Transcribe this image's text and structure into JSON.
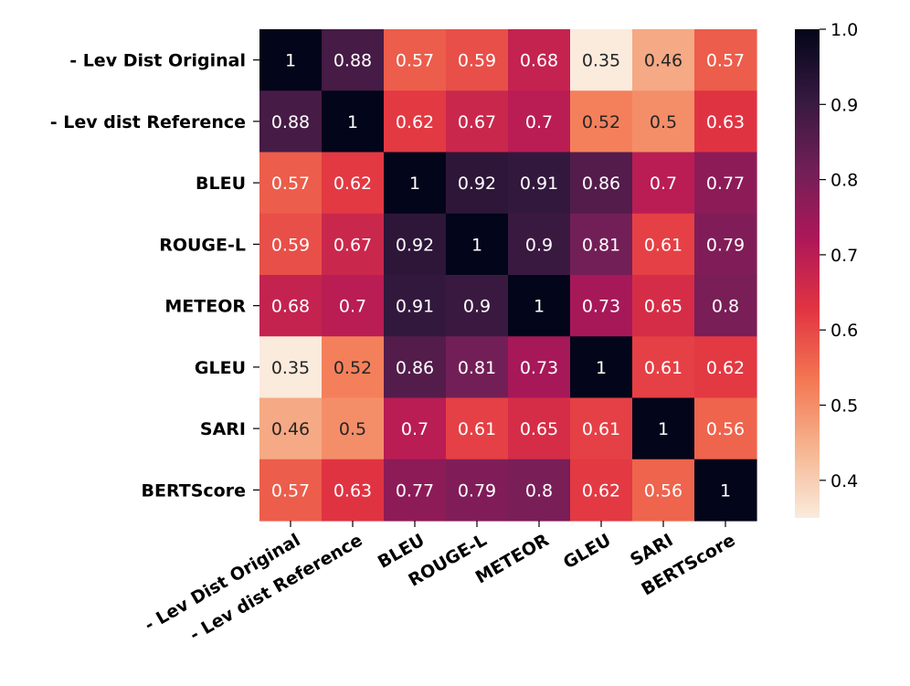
{
  "chart_data": {
    "type": "heatmap",
    "title": "",
    "xlabel": "",
    "ylabel": "",
    "row_labels": [
      "- Lev Dist Original",
      "- Lev dist Reference",
      "BLEU",
      "ROUGE-L",
      "METEOR",
      "GLEU",
      "SARI",
      "BERTScore"
    ],
    "col_labels": [
      "- Lev Dist Original",
      "- Lev dist Reference",
      "BLEU",
      "ROUGE-L",
      "METEOR",
      "GLEU",
      "SARI",
      "BERTScore"
    ],
    "values": [
      [
        1,
        0.88,
        0.57,
        0.59,
        0.68,
        0.35,
        0.46,
        0.57
      ],
      [
        0.88,
        1,
        0.62,
        0.67,
        0.7,
        0.52,
        0.5,
        0.63
      ],
      [
        0.57,
        0.62,
        1,
        0.92,
        0.91,
        0.86,
        0.7,
        0.77
      ],
      [
        0.59,
        0.67,
        0.92,
        1,
        0.9,
        0.81,
        0.61,
        0.79
      ],
      [
        0.68,
        0.7,
        0.91,
        0.9,
        1,
        0.73,
        0.65,
        0.8
      ],
      [
        0.35,
        0.52,
        0.86,
        0.81,
        0.73,
        1,
        0.61,
        0.62
      ],
      [
        0.46,
        0.5,
        0.7,
        0.61,
        0.65,
        0.61,
        1,
        0.56
      ],
      [
        0.57,
        0.63,
        0.77,
        0.79,
        0.8,
        0.62,
        0.56,
        1
      ]
    ],
    "annotations": [
      [
        "1",
        "0.88",
        "0.57",
        "0.59",
        "0.68",
        "0.35",
        "0.46",
        "0.57"
      ],
      [
        "0.88",
        "1",
        "0.62",
        "0.67",
        "0.7",
        "0.52",
        "0.5",
        "0.63"
      ],
      [
        "0.57",
        "0.62",
        "1",
        "0.92",
        "0.91",
        "0.86",
        "0.7",
        "0.77"
      ],
      [
        "0.59",
        "0.67",
        "0.92",
        "1",
        "0.9",
        "0.81",
        "0.61",
        "0.79"
      ],
      [
        "0.68",
        "0.7",
        "0.91",
        "0.9",
        "1",
        "0.73",
        "0.65",
        "0.8"
      ],
      [
        "0.35",
        "0.52",
        "0.86",
        "0.81",
        "0.73",
        "1",
        "0.61",
        "0.62"
      ],
      [
        "0.46",
        "0.5",
        "0.7",
        "0.61",
        "0.65",
        "0.61",
        "1",
        "0.56"
      ],
      [
        "0.57",
        "0.63",
        "0.77",
        "0.79",
        "0.8",
        "0.62",
        "0.56",
        "1"
      ]
    ],
    "colorbar": {
      "range": [
        0.35,
        1.0
      ],
      "ticks": [
        0.4,
        0.5,
        0.6,
        0.7,
        0.8,
        0.9,
        1.0
      ],
      "tick_labels": [
        "0.4",
        "0.5",
        "0.6",
        "0.7",
        "0.8",
        "0.9",
        "1.0"
      ],
      "colormap": "rocket_r",
      "colormap_stops": [
        "#faebdd",
        "#f6b48f",
        "#f37651",
        "#e13342",
        "#ad1759",
        "#701f57",
        "#35193e",
        "#03051a"
      ]
    },
    "grid": false,
    "legend": "colorbar-right"
  }
}
